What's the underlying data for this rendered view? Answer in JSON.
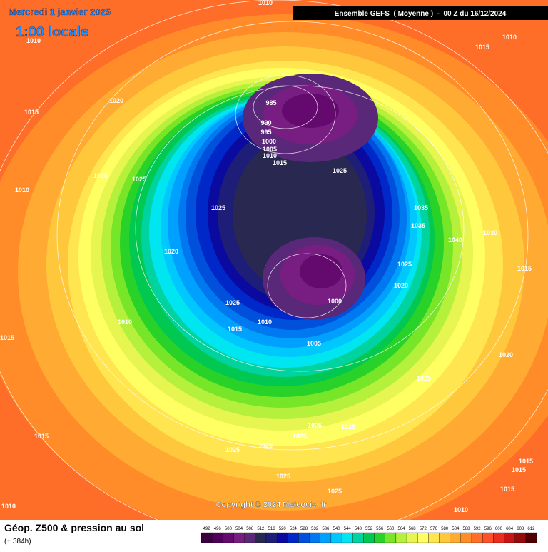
{
  "header": {
    "date": "Mercredi 1 janvier 2025",
    "time": "1:00 locale",
    "run": "Ensemble GEFS  ( Moyenne )  -  00 Z du 16/12/2024"
  },
  "isobar_labels": [
    1010,
    1010,
    1010,
    1015,
    1015,
    1020,
    985,
    990,
    995,
    1000,
    1005,
    1010,
    1015,
    1025,
    1025,
    1025,
    1010,
    1035,
    1025,
    1035,
    1030,
    1040,
    1020,
    1025,
    1015,
    1020,
    1025,
    1000,
    1010,
    1010,
    1015,
    1015,
    1005,
    1020,
    1025,
    1025,
    1025,
    1025,
    1015,
    1025,
    1025,
    1015,
    1015,
    1025,
    1025,
    1015,
    1010,
    1010
  ],
  "copyright": "Copyright © 2024 Meteociel.fr",
  "footer": {
    "title": "Géop. Z500 & pression au sol",
    "lead": "(+ 384h)"
  },
  "colorbar": {
    "levels": [
      492,
      496,
      500,
      504,
      508,
      512,
      516,
      520,
      524,
      528,
      532,
      536,
      540,
      544,
      548,
      552,
      556,
      560,
      564,
      568,
      572,
      576,
      580,
      584,
      588,
      592,
      596,
      600,
      604,
      608,
      612
    ],
    "colors": [
      "#3c0040",
      "#50005a",
      "#640a6e",
      "#781e82",
      "#5a2878",
      "#282850",
      "#1e1e78",
      "#0a0aa0",
      "#0028c8",
      "#0050dc",
      "#0078f0",
      "#00a0ff",
      "#00c8ff",
      "#00e6f0",
      "#00d2a0",
      "#00c850",
      "#28d228",
      "#78e628",
      "#b4f03c",
      "#e6f550",
      "#ffff64",
      "#ffe650",
      "#ffc83c",
      "#ffaa32",
      "#ff8c28",
      "#ff6e28",
      "#ff5028",
      "#eb2d1e",
      "#c81414",
      "#960a0a",
      "#500000"
    ]
  }
}
